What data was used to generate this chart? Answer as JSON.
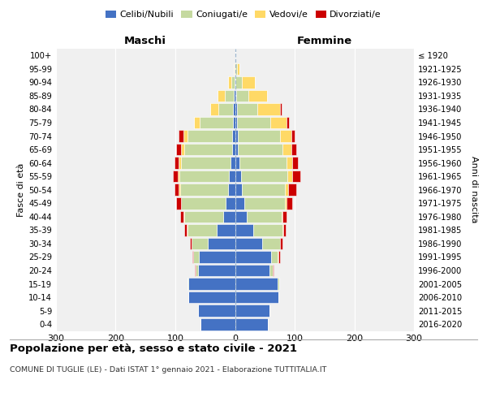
{
  "age_groups": [
    "0-4",
    "5-9",
    "10-14",
    "15-19",
    "20-24",
    "25-29",
    "30-34",
    "35-39",
    "40-44",
    "45-49",
    "50-54",
    "55-59",
    "60-64",
    "65-69",
    "70-74",
    "75-79",
    "80-84",
    "85-89",
    "90-94",
    "95-99",
    "100+"
  ],
  "birth_years": [
    "2016-2020",
    "2011-2015",
    "2006-2010",
    "2001-2005",
    "1996-2000",
    "1991-1995",
    "1986-1990",
    "1981-1985",
    "1976-1980",
    "1971-1975",
    "1966-1970",
    "1961-1965",
    "1956-1960",
    "1951-1955",
    "1946-1950",
    "1941-1945",
    "1936-1940",
    "1931-1935",
    "1926-1930",
    "1921-1925",
    "≤ 1920"
  ],
  "male_celibe": [
    58,
    62,
    78,
    78,
    62,
    60,
    45,
    30,
    20,
    15,
    12,
    10,
    8,
    5,
    5,
    4,
    3,
    2,
    1,
    1,
    0
  ],
  "male_coniugato": [
    0,
    0,
    0,
    2,
    4,
    10,
    28,
    50,
    65,
    75,
    80,
    83,
    82,
    80,
    75,
    55,
    25,
    15,
    5,
    0,
    0
  ],
  "male_vedovo": [
    0,
    0,
    0,
    0,
    0,
    0,
    0,
    1,
    1,
    1,
    2,
    3,
    4,
    5,
    7,
    10,
    14,
    12,
    6,
    1,
    0
  ],
  "male_divorziato": [
    0,
    0,
    0,
    0,
    1,
    2,
    2,
    4,
    6,
    8,
    7,
    8,
    8,
    8,
    8,
    0,
    0,
    0,
    0,
    0,
    0
  ],
  "female_celibe": [
    55,
    58,
    73,
    72,
    58,
    60,
    45,
    30,
    20,
    15,
    12,
    10,
    8,
    5,
    5,
    4,
    3,
    2,
    1,
    1,
    0
  ],
  "female_coniugato": [
    0,
    0,
    0,
    2,
    5,
    12,
    30,
    50,
    58,
    68,
    72,
    78,
    78,
    75,
    70,
    55,
    35,
    20,
    10,
    2,
    0
  ],
  "female_vedovo": [
    0,
    0,
    0,
    0,
    0,
    1,
    1,
    1,
    2,
    3,
    5,
    8,
    10,
    15,
    20,
    28,
    38,
    32,
    22,
    5,
    1
  ],
  "female_divorziato": [
    0,
    0,
    0,
    0,
    1,
    2,
    3,
    4,
    7,
    10,
    14,
    14,
    10,
    8,
    5,
    3,
    2,
    0,
    0,
    0,
    0
  ],
  "color_celibe": "#4472c4",
  "color_coniugato": "#c5d9a0",
  "color_vedovo": "#ffd966",
  "color_divorziato": "#cc0000",
  "legend_labels": [
    "Celibi/Nubili",
    "Coniugati/e",
    "Vedovi/e",
    "Divorziati/e"
  ],
  "title": "Popolazione per età, sesso e stato civile - 2021",
  "subtitle": "COMUNE DI TUGLIE (LE) - Dati ISTAT 1° gennaio 2021 - Elaborazione TUTTITALIA.IT",
  "label_maschi": "Maschi",
  "label_femmine": "Femmine",
  "ylabel_left": "Fasce di età",
  "ylabel_right": "Anni di nascita",
  "xlim": 300,
  "bg_color": "#f0f0f0"
}
